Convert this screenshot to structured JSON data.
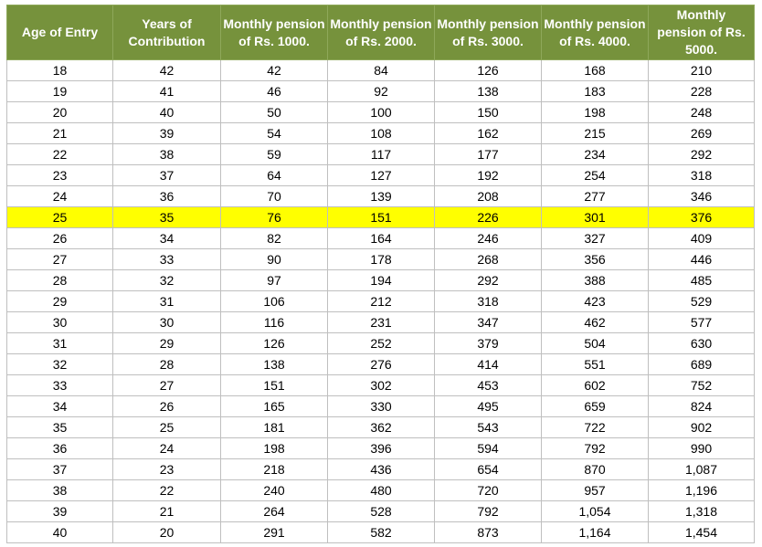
{
  "table": {
    "headers": [
      "Age of Entry",
      "Years of Contribution",
      "Monthly pension of Rs. 1000.",
      "Monthly pension of Rs. 2000.",
      "Monthly pension of Rs. 3000.",
      "Monthly pension of Rs. 4000.",
      "Monthly pension of Rs. 5000."
    ],
    "highlight_color": "#ffff00",
    "header_color": "#76923c",
    "highlighted_row_index": 7,
    "rows": [
      [
        "18",
        "42",
        "42",
        "84",
        "126",
        "168",
        "210"
      ],
      [
        "19",
        "41",
        "46",
        "92",
        "138",
        "183",
        "228"
      ],
      [
        "20",
        "40",
        "50",
        "100",
        "150",
        "198",
        "248"
      ],
      [
        "21",
        "39",
        "54",
        "108",
        "162",
        "215",
        "269"
      ],
      [
        "22",
        "38",
        "59",
        "117",
        "177",
        "234",
        "292"
      ],
      [
        "23",
        "37",
        "64",
        "127",
        "192",
        "254",
        "318"
      ],
      [
        "24",
        "36",
        "70",
        "139",
        "208",
        "277",
        "346"
      ],
      [
        "25",
        "35",
        "76",
        "151",
        "226",
        "301",
        "376"
      ],
      [
        "26",
        "34",
        "82",
        "164",
        "246",
        "327",
        "409"
      ],
      [
        "27",
        "33",
        "90",
        "178",
        "268",
        "356",
        "446"
      ],
      [
        "28",
        "32",
        "97",
        "194",
        "292",
        "388",
        "485"
      ],
      [
        "29",
        "31",
        "106",
        "212",
        "318",
        "423",
        "529"
      ],
      [
        "30",
        "30",
        "116",
        "231",
        "347",
        "462",
        "577"
      ],
      [
        "31",
        "29",
        "126",
        "252",
        "379",
        "504",
        "630"
      ],
      [
        "32",
        "28",
        "138",
        "276",
        "414",
        "551",
        "689"
      ],
      [
        "33",
        "27",
        "151",
        "302",
        "453",
        "602",
        "752"
      ],
      [
        "34",
        "26",
        "165",
        "330",
        "495",
        "659",
        "824"
      ],
      [
        "35",
        "25",
        "181",
        "362",
        "543",
        "722",
        "902"
      ],
      [
        "36",
        "24",
        "198",
        "396",
        "594",
        "792",
        "990"
      ],
      [
        "37",
        "23",
        "218",
        "436",
        "654",
        "870",
        "1,087"
      ],
      [
        "38",
        "22",
        "240",
        "480",
        "720",
        "957",
        "1,196"
      ],
      [
        "39",
        "21",
        "264",
        "528",
        "792",
        "1,054",
        "1,318"
      ],
      [
        "40",
        "20",
        "291",
        "582",
        "873",
        "1,164",
        "1,454"
      ]
    ]
  }
}
